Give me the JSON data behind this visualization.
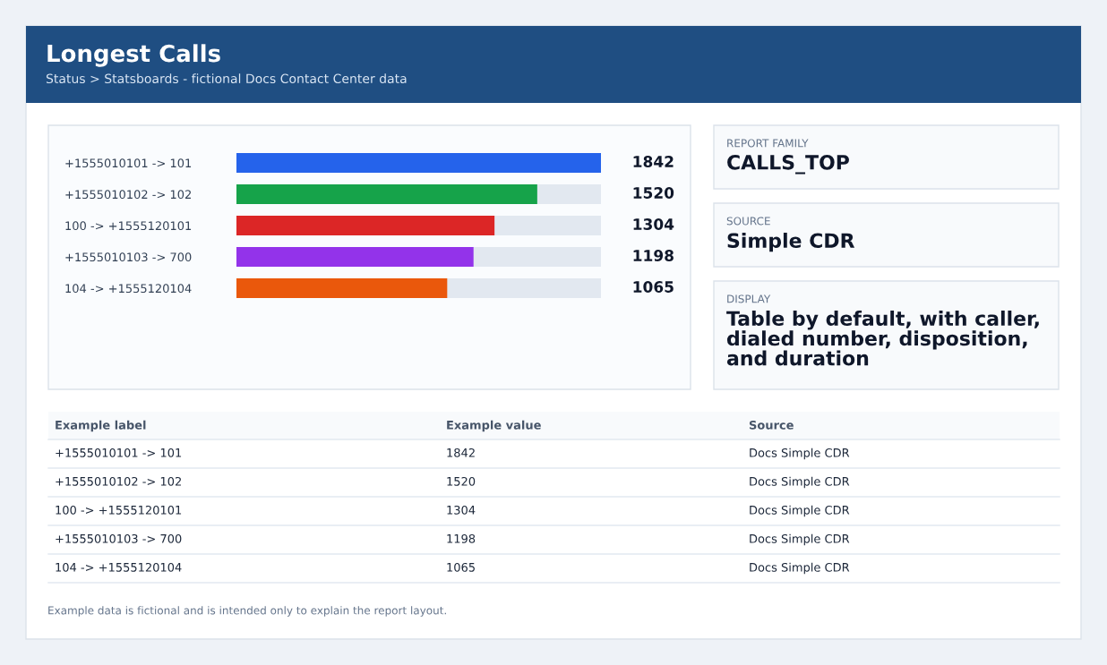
{
  "chart_data": {
    "type": "bar",
    "orientation": "horizontal",
    "title": "Longest Calls",
    "subtitle": "Status > Statsboards - fictional Docs Contact Center data",
    "categories": [
      "+1555010101 -> 101",
      "+1555010102 -> 102",
      "100 -> +1555120101",
      "+1555010103 -> 700",
      "104 -> +1555120104"
    ],
    "values": [
      1842,
      1520,
      1304,
      1198,
      1065
    ],
    "colors": [
      "#2563eb",
      "#16a34a",
      "#dc2626",
      "#9333ea",
      "#ea580c"
    ],
    "data_labels": true,
    "annotations": [
      "REPORT FAMILY",
      "CALLS_TOP",
      "SOURCE",
      "Simple CDR",
      "DISPLAY",
      "Table by default, with caller,\ndialed number, disposition,\nand duration",
      "Example label",
      "Example value",
      "Source",
      "1842",
      "1520",
      "1304",
      "1198",
      "1065",
      "Docs Simple CDR",
      "Docs Simple CDR",
      "Docs Simple CDR",
      "Docs Simple CDR",
      "Docs Simple CDR",
      "Example data is fictional and is intended only to explain the report layout."
    ]
  }
}
